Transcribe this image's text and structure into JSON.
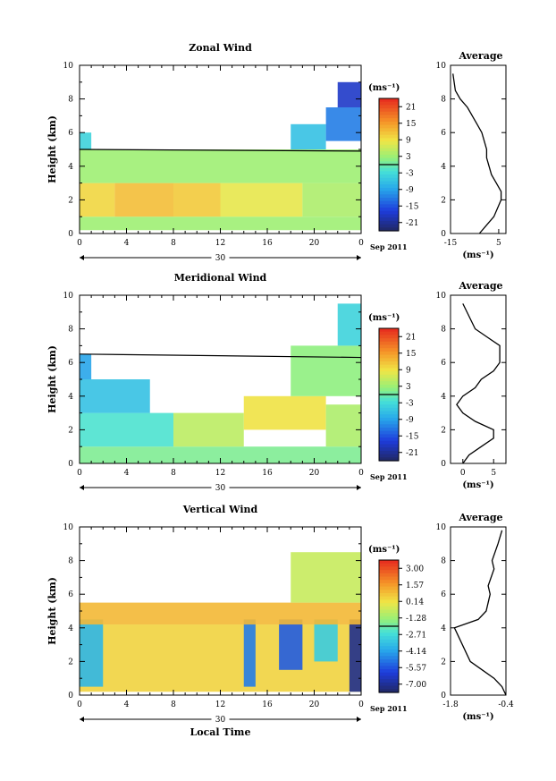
{
  "panels": [
    {
      "title": "Zonal Wind",
      "ylabel": "Height (km)",
      "yticks": [
        "0",
        "2",
        "4",
        "6",
        "8",
        "10"
      ],
      "xticks": [
        "0",
        "4",
        "8",
        "12",
        "16",
        "20",
        "0"
      ],
      "day_label": "30",
      "date_label": "Sep 2011",
      "unit_label": "(ms⁻¹)",
      "cbar_ticks": [
        "21",
        "15",
        "9",
        "3",
        "-3",
        "-9",
        "-15",
        "-21"
      ],
      "avg": {
        "title": "Average",
        "xticks": [
          "-15",
          "5"
        ],
        "unit_label": "(ms⁻¹)",
        "yticks": [
          "0",
          "2",
          "4",
          "6",
          "8",
          "10"
        ]
      }
    },
    {
      "title": "Meridional Wind",
      "ylabel": "Height (km)",
      "yticks": [
        "0",
        "2",
        "4",
        "6",
        "8",
        "10"
      ],
      "xticks": [
        "0",
        "4",
        "8",
        "12",
        "16",
        "20",
        "0"
      ],
      "day_label": "30",
      "date_label": "Sep 2011",
      "unit_label": "(ms⁻¹)",
      "cbar_ticks": [
        "21",
        "15",
        "9",
        "3",
        "-3",
        "-9",
        "-15",
        "-21"
      ],
      "avg": {
        "title": "Average",
        "xticks": [
          "0",
          "5"
        ],
        "unit_label": "(ms⁻¹)",
        "yticks": [
          "0",
          "2",
          "4",
          "6",
          "8",
          "10"
        ]
      }
    },
    {
      "title": "Vertical Wind",
      "ylabel": "Height (km)",
      "yticks": [
        "0",
        "2",
        "4",
        "6",
        "8",
        "10"
      ],
      "xticks": [
        "0",
        "4",
        "8",
        "12",
        "16",
        "20",
        "0"
      ],
      "day_label": "30",
      "date_label": "Sep 2011",
      "unit_label": "(ms⁻¹)",
      "cbar_ticks": [
        "3.00",
        "1.57",
        "0.14",
        "-1.28",
        "-2.71",
        "-4.14",
        "-5.57",
        "-7.00"
      ],
      "avg": {
        "title": "Average",
        "xticks": [
          "-1.8",
          "-0.4"
        ],
        "unit_label": "(ms⁻¹)",
        "yticks": [
          "0",
          "2",
          "4",
          "6",
          "8",
          "10"
        ]
      }
    }
  ],
  "xlabel": "Local Time",
  "chart_data": [
    {
      "type": "heatmap",
      "title": "Zonal Wind",
      "xlabel": "",
      "ylabel": "Height (km)",
      "xlim": [
        0,
        24
      ],
      "ylim": [
        0,
        10
      ],
      "clim": [
        -24,
        24
      ],
      "cells": [
        {
          "t": [
            0,
            24
          ],
          "h": [
            0.2,
            1.0
          ],
          "v": 3
        },
        {
          "t": [
            0,
            3
          ],
          "h": [
            1.0,
            3.0
          ],
          "v": 10
        },
        {
          "t": [
            3,
            8
          ],
          "h": [
            1.0,
            3.0
          ],
          "v": 12
        },
        {
          "t": [
            8,
            12
          ],
          "h": [
            1.0,
            3.0
          ],
          "v": 11
        },
        {
          "t": [
            12,
            19
          ],
          "h": [
            1.0,
            3.0
          ],
          "v": 8
        },
        {
          "t": [
            19,
            24
          ],
          "h": [
            1.0,
            3.0
          ],
          "v": 4
        },
        {
          "t": [
            0,
            24
          ],
          "h": [
            3.0,
            5.0
          ],
          "v": 3
        },
        {
          "t": [
            0,
            1
          ],
          "h": [
            5.0,
            6.0
          ],
          "v": -4
        },
        {
          "t": [
            18,
            21
          ],
          "h": [
            5.0,
            6.5
          ],
          "v": -6
        },
        {
          "t": [
            21,
            24
          ],
          "h": [
            5.5,
            7.5
          ],
          "v": -12
        },
        {
          "t": [
            22,
            24
          ],
          "h": [
            7.5,
            9.0
          ],
          "v": -18
        }
      ],
      "line": {
        "x": [
          0,
          24
        ],
        "y": [
          5.0,
          4.9
        ]
      },
      "avg_profile": {
        "xlim": [
          -15,
          8
        ],
        "x": [
          -3,
          0,
          3,
          6,
          6,
          4,
          2,
          1,
          0,
          0,
          -1,
          -2,
          -4,
          -6,
          -8,
          -11,
          -13,
          -14
        ],
        "y": [
          0,
          0.5,
          1,
          2,
          2.5,
          3,
          3.5,
          4,
          4.5,
          5,
          5.5,
          6,
          6.5,
          7,
          7.5,
          8,
          8.5,
          9.5
        ]
      }
    },
    {
      "type": "heatmap",
      "title": "Meridional Wind",
      "xlabel": "",
      "ylabel": "Height (km)",
      "xlim": [
        0,
        24
      ],
      "ylim": [
        0,
        10
      ],
      "clim": [
        -24,
        24
      ],
      "cells": [
        {
          "t": [
            0,
            24
          ],
          "h": [
            0.0,
            1.0
          ],
          "v": 1
        },
        {
          "t": [
            0,
            8
          ],
          "h": [
            1.0,
            3.0
          ],
          "v": -2
        },
        {
          "t": [
            8,
            14
          ],
          "h": [
            1.0,
            3.0
          ],
          "v": 5
        },
        {
          "t": [
            14,
            21
          ],
          "h": [
            2.0,
            4.0
          ],
          "v": 9
        },
        {
          "t": [
            21,
            24
          ],
          "h": [
            1.0,
            3.5
          ],
          "v": 4
        },
        {
          "t": [
            0,
            6
          ],
          "h": [
            3.0,
            5.0
          ],
          "v": -6
        },
        {
          "t": [
            0,
            1
          ],
          "h": [
            5.0,
            6.5
          ],
          "v": -9
        },
        {
          "t": [
            18,
            24
          ],
          "h": [
            4.0,
            7.0
          ],
          "v": 2
        },
        {
          "t": [
            22,
            24
          ],
          "h": [
            7.0,
            9.5
          ],
          "v": -4
        }
      ],
      "line": {
        "x": [
          0,
          24
        ],
        "y": [
          6.5,
          6.3
        ]
      },
      "avg_profile": {
        "xlim": [
          -2,
          7
        ],
        "x": [
          0,
          1,
          3,
          5,
          5,
          2,
          0,
          -1,
          0,
          2,
          3,
          5,
          6,
          6,
          4,
          2,
          0
        ],
        "y": [
          0,
          0.5,
          1,
          1.5,
          2,
          2.5,
          3,
          3.5,
          4,
          4.5,
          5,
          5.5,
          6,
          7,
          7.5,
          8,
          9.5
        ]
      }
    },
    {
      "type": "heatmap",
      "title": "Vertical Wind",
      "xlabel": "Local Time",
      "ylabel": "Height (km)",
      "xlim": [
        0,
        24
      ],
      "ylim": [
        0,
        10
      ],
      "clim": [
        -7.0,
        3.0
      ],
      "cells": [
        {
          "t": [
            0,
            24
          ],
          "h": [
            0.2,
            4.2
          ],
          "v": 0.14
        },
        {
          "t": [
            0,
            2
          ],
          "h": [
            0.5,
            4.5
          ],
          "v": -3.5
        },
        {
          "t": [
            14,
            15
          ],
          "h": [
            0.5,
            4.5
          ],
          "v": -4.5
        },
        {
          "t": [
            17,
            19
          ],
          "h": [
            1.5,
            4.5
          ],
          "v": -5.0
        },
        {
          "t": [
            20,
            22
          ],
          "h": [
            2.0,
            4.5
          ],
          "v": -3.0
        },
        {
          "t": [
            23,
            24
          ],
          "h": [
            0.2,
            4.5
          ],
          "v": -6.5
        },
        {
          "t": [
            0,
            24
          ],
          "h": [
            4.2,
            5.5
          ],
          "v": 0.6
        },
        {
          "t": [
            18,
            24
          ],
          "h": [
            5.5,
            8.5
          ],
          "v": -0.8
        }
      ],
      "line": null,
      "avg_profile": {
        "xlim": [
          -1.8,
          -0.4
        ],
        "x": [
          -0.4,
          -0.5,
          -0.7,
          -1.0,
          -1.3,
          -1.7,
          -1.1,
          -0.9,
          -0.8,
          -0.85,
          -0.7,
          -0.75,
          -0.6,
          -0.5
        ],
        "y": [
          0,
          0.5,
          1,
          1.5,
          2,
          4,
          4.5,
          5,
          6,
          6.5,
          7.5,
          8,
          9,
          9.8
        ]
      }
    }
  ]
}
